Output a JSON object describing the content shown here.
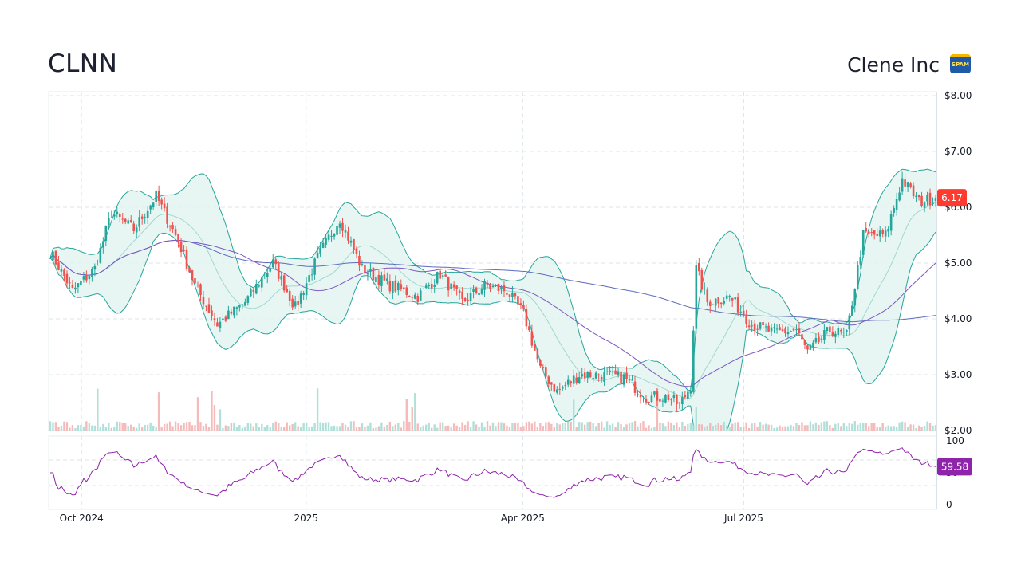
{
  "header": {
    "ticker": "CLNN",
    "company": "Clene Inc",
    "badge_text": "SPAM"
  },
  "colors": {
    "up": "#26a69a",
    "down": "#ef5350",
    "bollinger": "#26a69a",
    "bollinger_fill": "#e3f4f1",
    "ma_long": "#5c6bc0",
    "ma_short": "#7e57c2",
    "rsi": "#8e24aa",
    "last_price_tag": "#ff3b30",
    "rsi_tag": "#8e24aa",
    "grid": "#dde6ea"
  },
  "chart_data": [
    {
      "type": "candlestick",
      "title": "",
      "y_ticks": [
        "$8.00",
        "$7.00",
        "$6.00",
        "$5.00",
        "$4.00",
        "$3.00",
        "$2.00"
      ],
      "ylim": [
        2,
        8
      ],
      "x_ticks": [
        "Oct 2024",
        "2025",
        "Apr 2025",
        "Jul 2025"
      ],
      "grid": true,
      "last_price": 6.17,
      "last_price_label": "6.17",
      "overlays": [
        "bollinger-bands",
        "moving-average-long",
        "moving-average-short",
        "volume"
      ],
      "price_anchors": [
        [
          0,
          5.2
        ],
        [
          8,
          4.5
        ],
        [
          16,
          4.9
        ],
        [
          22,
          5.9
        ],
        [
          30,
          5.6
        ],
        [
          38,
          6.2
        ],
        [
          46,
          5.4
        ],
        [
          52,
          4.6
        ],
        [
          60,
          3.9
        ],
        [
          70,
          4.3
        ],
        [
          80,
          5.0
        ],
        [
          88,
          4.2
        ],
        [
          96,
          5.1
        ],
        [
          104,
          5.8
        ],
        [
          112,
          4.9
        ],
        [
          122,
          4.6
        ],
        [
          132,
          4.4
        ],
        [
          140,
          4.8
        ],
        [
          148,
          4.3
        ],
        [
          156,
          4.6
        ],
        [
          164,
          4.5
        ],
        [
          170,
          4.1
        ],
        [
          176,
          3.1
        ],
        [
          182,
          2.7
        ],
        [
          190,
          3.0
        ],
        [
          198,
          3.0
        ],
        [
          206,
          2.95
        ],
        [
          214,
          2.6
        ],
        [
          222,
          2.6
        ],
        [
          226,
          2.45
        ],
        [
          230,
          2.8
        ],
        [
          232,
          4.9
        ],
        [
          236,
          4.3
        ],
        [
          244,
          4.4
        ],
        [
          252,
          3.9
        ],
        [
          260,
          3.75
        ],
        [
          268,
          3.8
        ],
        [
          272,
          3.4
        ],
        [
          280,
          3.8
        ],
        [
          286,
          3.7
        ],
        [
          292,
          5.5
        ],
        [
          300,
          5.5
        ],
        [
          306,
          6.5
        ],
        [
          312,
          6.1
        ],
        [
          318,
          6.17
        ]
      ],
      "last_index": 318
    },
    {
      "type": "line",
      "name": "RSI",
      "y_ticks": [
        "100",
        "50",
        "0"
      ],
      "ylim": [
        0,
        100
      ],
      "bands": [
        30,
        70
      ],
      "last_value": 59.58,
      "last_value_label": "59.58"
    }
  ]
}
